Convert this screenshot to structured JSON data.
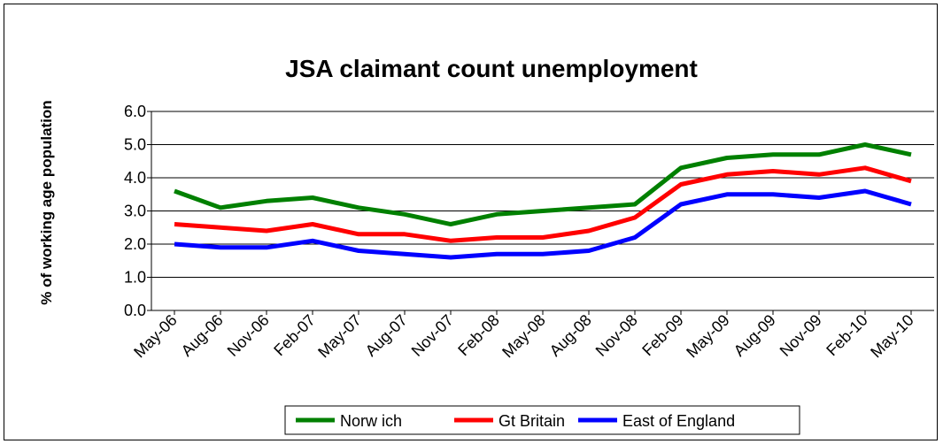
{
  "chart_data": {
    "type": "line",
    "title": "JSA claimant count unemployment",
    "xlabel": "",
    "ylabel": "% of working age population",
    "ylim": [
      0,
      6
    ],
    "yticks": [
      "0.0",
      "1.0",
      "2.0",
      "3.0",
      "4.0",
      "5.0",
      "6.0"
    ],
    "categories": [
      "May-06",
      "Aug-06",
      "Nov-06",
      "Feb-07",
      "May-07",
      "Aug-07",
      "Nov-07",
      "Feb-08",
      "May-08",
      "Aug-08",
      "Nov-08",
      "Feb-09",
      "May-09",
      "Aug-09",
      "Nov-09",
      "Feb-10",
      "May-10"
    ],
    "grid": true,
    "legend_position": "bottom",
    "series": [
      {
        "name": "Norw ich",
        "color": "#008000",
        "values": [
          3.6,
          3.1,
          3.3,
          3.4,
          3.1,
          2.9,
          2.6,
          2.9,
          3.0,
          3.1,
          3.2,
          4.3,
          4.6,
          4.7,
          4.7,
          5.0,
          4.7
        ]
      },
      {
        "name": "Gt Britain",
        "color": "#ff0000",
        "values": [
          2.6,
          2.5,
          2.4,
          2.6,
          2.3,
          2.3,
          2.1,
          2.2,
          2.2,
          2.4,
          2.8,
          3.8,
          4.1,
          4.2,
          4.1,
          4.3,
          3.9
        ]
      },
      {
        "name": "East of England",
        "color": "#0000ff",
        "values": [
          2.0,
          1.9,
          1.9,
          2.1,
          1.8,
          1.7,
          1.6,
          1.7,
          1.7,
          1.8,
          2.2,
          3.2,
          3.5,
          3.5,
          3.4,
          3.6,
          3.2
        ]
      }
    ]
  }
}
